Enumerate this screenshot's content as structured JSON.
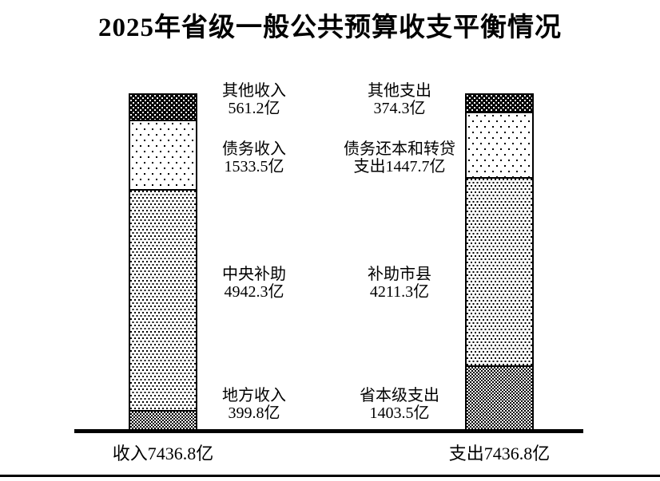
{
  "title": "2025年省级一般公共预算收支平衡情况",
  "colors": {
    "ink": "#000000",
    "background": "#ffffff"
  },
  "chart_data": {
    "type": "bar",
    "subtype": "paired-stacked-columns",
    "unit": "亿",
    "stack_order": "top-to-bottom",
    "total_per_bar": 7436.8,
    "bars": [
      {
        "name": "收入",
        "total_label": "收入7436.8亿",
        "segments": [
          {
            "label": "其他收入",
            "value": 561.2,
            "value_label": "561.2亿",
            "pattern": "white-dots-on-black"
          },
          {
            "label": "债务收入",
            "value": 1533.5,
            "value_label": "1533.5亿",
            "pattern": "sparse-black-dots"
          },
          {
            "label": "中央补助",
            "value": 4942.3,
            "value_label": "4942.3亿",
            "pattern": "dense-black-dots"
          },
          {
            "label": "地方收入",
            "value": 399.8,
            "value_label": "399.8亿",
            "pattern": "checkerboard"
          }
        ]
      },
      {
        "name": "支出",
        "total_label": "支出7436.8亿",
        "segments": [
          {
            "label": "其他支出",
            "value": 374.3,
            "value_label": "374.3亿",
            "pattern": "white-dots-on-black"
          },
          {
            "label": "债务还本和转贷支出",
            "value": 1447.7,
            "value_label": "1447.7亿",
            "pattern": "sparse-black-dots"
          },
          {
            "label": "补助市县",
            "value": 4211.3,
            "value_label": "4211.3亿",
            "pattern": "dense-black-dots"
          },
          {
            "label": "省本级支出",
            "value": 1403.5,
            "value_label": "1403.5亿",
            "pattern": "checkerboard"
          }
        ]
      }
    ]
  },
  "labels": {
    "rows": [
      {
        "income": [
          "其他收入",
          "561.2亿"
        ],
        "expense": [
          "其他支出",
          "374.3亿"
        ]
      },
      {
        "income": [
          "债务收入",
          "1533.5亿"
        ],
        "expense": [
          "债务还本和转贷",
          "支出1447.7亿"
        ]
      },
      {
        "income": [
          "中央补助",
          "4942.3亿"
        ],
        "expense": [
          "补助市县",
          "4211.3亿"
        ]
      },
      {
        "income": [
          "地方收入",
          "399.8亿"
        ],
        "expense": [
          "省本级支出",
          "1403.5亿"
        ]
      }
    ]
  },
  "totals": {
    "income": "收入7436.8亿",
    "expense": "支出7436.8亿"
  }
}
